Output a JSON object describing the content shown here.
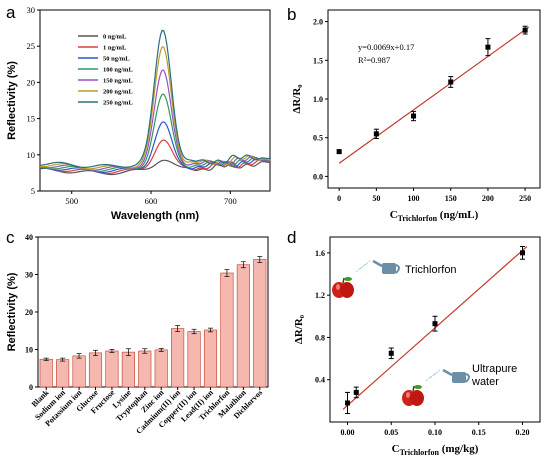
{
  "chart_data": [
    {
      "panel": "a",
      "type": "line",
      "xlabel": "Wavelength (nm)",
      "ylabel": "Reflectivity (%)",
      "xlim": [
        460,
        750
      ],
      "ylim": [
        5,
        30
      ],
      "xticks": [
        500,
        600,
        700
      ],
      "yticks": [
        5,
        10,
        15,
        20,
        25,
        30
      ],
      "peak_wavelength": 615,
      "series": [
        {
          "name": "0 ng/mL",
          "color": "#555555",
          "peak": 9.5
        },
        {
          "name": "1 ng/mL",
          "color": "#d94040",
          "peak": 12.0
        },
        {
          "name": "50 ng/mL",
          "color": "#2f56c8",
          "peak": 14.2
        },
        {
          "name": "100 ng/mL",
          "color": "#2f9a5a",
          "peak": 17.8
        },
        {
          "name": "150 ng/mL",
          "color": "#9b4fc6",
          "peak": 21.0
        },
        {
          "name": "200 ng/mL",
          "color": "#b8a020",
          "peak": 24.2
        },
        {
          "name": "250 ng/mL",
          "color": "#2a6f80",
          "peak": 26.5
        }
      ]
    },
    {
      "panel": "b",
      "type": "scatter",
      "xlabel_main": "C",
      "xlabel_sub": "Trichlorfon",
      "xlabel_unit": " (ng/mL)",
      "ylabel": "ΔR/R₀",
      "xlim": [
        -15,
        270
      ],
      "ylim": [
        -0.15,
        2.15
      ],
      "xticks": [
        "0",
        "50",
        "100",
        "150",
        "200",
        "250"
      ],
      "yticks": [
        "0.0",
        "0.5",
        "1.0",
        "1.5",
        "2.0"
      ],
      "x": [
        0,
        50,
        100,
        150,
        200,
        250
      ],
      "y": [
        0.32,
        0.55,
        0.78,
        1.22,
        1.67,
        1.89
      ],
      "err": [
        0.02,
        0.06,
        0.06,
        0.07,
        0.11,
        0.05
      ],
      "fit": {
        "slope": 0.0069,
        "intercept": 0.17,
        "color": "#c0392b"
      },
      "equation": "y=0.0069x+0.17",
      "r2": "R²=0.987"
    },
    {
      "panel": "c",
      "type": "bar",
      "ylabel": "Reflectivity (%)",
      "ylim": [
        0,
        40
      ],
      "yticks": [
        0,
        10,
        20,
        30,
        40
      ],
      "categories": [
        "Blank",
        "Sodium ion",
        "Potassium ion",
        "Glucose",
        "Fructose",
        "Lysine",
        "Tryptophan",
        "Zinc ion",
        "Cadmium(II) ion",
        "Copper(II) ion",
        "Lead(II) ion",
        "Trichlorfon",
        "Malathion",
        "Dichlorvos"
      ],
      "values": [
        7.4,
        7.3,
        8.3,
        9.1,
        9.6,
        9.3,
        9.6,
        9.9,
        15.6,
        14.8,
        15.2,
        30.4,
        32.6,
        34.0
      ],
      "err": [
        0.3,
        0.4,
        0.6,
        0.7,
        0.4,
        0.9,
        0.6,
        0.4,
        0.8,
        0.6,
        0.5,
        0.9,
        0.8,
        0.8
      ],
      "bar_color": "#f4b8ae",
      "bar_edge": "#c0392b"
    },
    {
      "panel": "d",
      "type": "scatter",
      "xlabel_main": "C",
      "xlabel_sub": "Trichlorfon",
      "xlabel_unit": " (mg/kg)",
      "ylabel": "ΔR/R₀",
      "xlim": [
        -0.02,
        0.22
      ],
      "ylim": [
        0.0,
        1.75
      ],
      "xticks": [
        "0.00",
        "0.05",
        "0.10",
        "0.15",
        "0.20"
      ],
      "yticks": [
        "0.4",
        "0.8",
        "1.2",
        "1.6"
      ],
      "x": [
        0.0,
        0.01,
        0.05,
        0.1,
        0.2
      ],
      "y": [
        0.18,
        0.28,
        0.65,
        0.93,
        1.6
      ],
      "err": [
        0.1,
        0.05,
        0.05,
        0.07,
        0.06
      ],
      "fit": {
        "x0": -0.005,
        "y0": 0.12,
        "x1": 0.205,
        "y1": 1.66,
        "color": "#c0392b"
      },
      "annotations": [
        "Trichlorfon",
        "Ultrapure",
        "water"
      ]
    }
  ]
}
